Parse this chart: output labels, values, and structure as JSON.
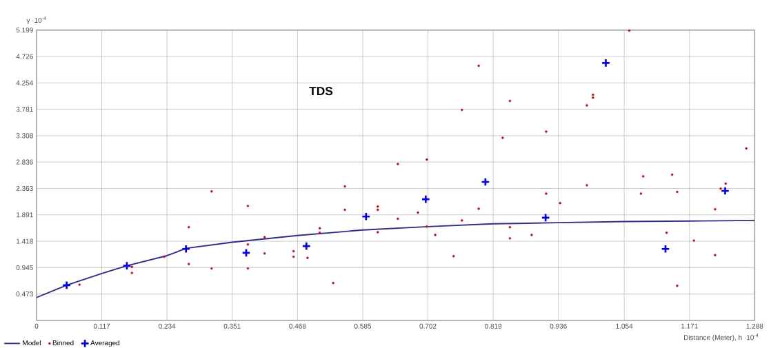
{
  "chart_data": {
    "type": "scatter",
    "annotations": [
      "TDS"
    ],
    "xlabel": "Distance (Meter), h ·10$^{-4}$",
    "ylabel": "γ ·10$^{-4}$",
    "xlim": [
      0,
      1.288
    ],
    "ylim": [
      0,
      5.199
    ],
    "xticks": [
      0,
      0.117,
      0.234,
      0.351,
      0.468,
      0.585,
      0.702,
      0.819,
      0.936,
      1.054,
      1.171,
      1.288
    ],
    "yticks": [
      {
        "value": 0,
        "label": null
      },
      0.473,
      0.945,
      1.418,
      1.891,
      2.363,
      2.836,
      3.308,
      3.781,
      4.254,
      4.726,
      5.199
    ],
    "grid": true,
    "legend": "bottom left",
    "series": [
      {
        "name": "Model",
        "type": "line",
        "marker": "none",
        "color": "#2b2b99",
        "x": [
          0,
          0.054,
          0.117,
          0.162,
          0.234,
          0.268,
          0.351,
          0.468,
          0.585,
          0.702,
          0.819,
          0.936,
          1.054,
          1.171,
          1.288
        ],
        "values": [
          0.41,
          0.63,
          0.84,
          0.98,
          1.16,
          1.29,
          1.4,
          1.52,
          1.62,
          1.68,
          1.73,
          1.75,
          1.77,
          1.78,
          1.79
        ]
      },
      {
        "name": "Binned",
        "marker": "circle",
        "color": "#e00000",
        "x": [
          0.077,
          0.171,
          0.171,
          0.229,
          0.273,
          0.273,
          0.314,
          0.314,
          0.379,
          0.379,
          0.379,
          0.409,
          0.409,
          0.461,
          0.461,
          0.486,
          0.508,
          0.508,
          0.532,
          0.553,
          0.553,
          0.612,
          0.612,
          0.612,
          0.648,
          0.648,
          0.684,
          0.7,
          0.7,
          0.715,
          0.748,
          0.763,
          0.763,
          0.793,
          0.793,
          0.836,
          0.849,
          0.849,
          0.849,
          0.888,
          0.914,
          0.914,
          0.939,
          0.987,
          0.987,
          0.998,
          0.998,
          1.063,
          1.084,
          1.088,
          1.13,
          1.14,
          1.149,
          1.149,
          1.179,
          1.217,
          1.217,
          1.227,
          1.236,
          1.273
        ],
        "values": [
          0.64,
          0.96,
          0.85,
          1.14,
          1.67,
          1.01,
          2.31,
          0.93,
          2.05,
          1.36,
          0.93,
          1.49,
          1.2,
          1.24,
          1.14,
          1.12,
          1.65,
          1.57,
          0.67,
          2.4,
          1.98,
          2.04,
          1.98,
          1.58,
          2.8,
          1.82,
          1.93,
          2.88,
          1.68,
          1.53,
          1.15,
          3.77,
          1.79,
          4.56,
          2.0,
          3.27,
          3.93,
          1.67,
          1.47,
          1.53,
          3.38,
          2.27,
          2.1,
          3.85,
          2.42,
          4.04,
          3.99,
          5.19,
          2.27,
          2.58,
          1.57,
          2.61,
          2.3,
          0.62,
          1.43,
          1.99,
          1.17,
          2.36,
          2.45,
          3.08
        ]
      },
      {
        "name": "Averaged",
        "marker": "cross",
        "color": "#0000ff",
        "x": [
          0.054,
          0.162,
          0.268,
          0.376,
          0.484,
          0.591,
          0.698,
          0.805,
          0.913,
          1.021,
          1.128,
          1.235
        ],
        "values": [
          0.63,
          0.98,
          1.28,
          1.21,
          1.33,
          1.86,
          2.17,
          2.48,
          1.84,
          4.61,
          1.28,
          2.32
        ]
      }
    ]
  }
}
